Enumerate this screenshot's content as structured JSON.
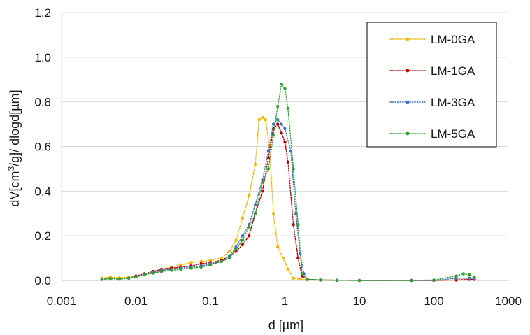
{
  "chart_data": {
    "type": "line",
    "xscale": "log",
    "xlim": [
      0.001,
      1000
    ],
    "ylim": [
      0,
      1.2
    ],
    "x_ticks": [
      0.001,
      0.01,
      0.1,
      1,
      10,
      100,
      1000
    ],
    "x_tick_labels": [
      "0.001",
      "0.01",
      "0.1",
      "1",
      "10",
      "100",
      "1000"
    ],
    "y_ticks": [
      0,
      0.2,
      0.4,
      0.6,
      0.8,
      1.0,
      1.2
    ],
    "y_tick_labels": [
      "0.0",
      "0.2",
      "0.4",
      "0.6",
      "0.8",
      "1.0",
      "1.2"
    ],
    "xlabel": "d [µm]",
    "ylabel_parts": {
      "pre": "dV[cm",
      "sup": "3",
      "post": "/g]/ dlogd[µm]"
    },
    "grid": "horizontal",
    "legend_position": "top-right",
    "series": [
      {
        "name": "LM-0GA",
        "color": "#f5b400",
        "points": [
          [
            0.0035,
            0.01
          ],
          [
            0.0045,
            0.015
          ],
          [
            0.006,
            0.012
          ],
          [
            0.008,
            0.015
          ],
          [
            0.01,
            0.02
          ],
          [
            0.013,
            0.03
          ],
          [
            0.017,
            0.04
          ],
          [
            0.022,
            0.05
          ],
          [
            0.03,
            0.06
          ],
          [
            0.04,
            0.07
          ],
          [
            0.055,
            0.08
          ],
          [
            0.075,
            0.085
          ],
          [
            0.1,
            0.09
          ],
          [
            0.14,
            0.1
          ],
          [
            0.18,
            0.13
          ],
          [
            0.22,
            0.18
          ],
          [
            0.27,
            0.28
          ],
          [
            0.33,
            0.38
          ],
          [
            0.4,
            0.52
          ],
          [
            0.45,
            0.72
          ],
          [
            0.5,
            0.73
          ],
          [
            0.55,
            0.72
          ],
          [
            0.62,
            0.6
          ],
          [
            0.7,
            0.3
          ],
          [
            0.8,
            0.15
          ],
          [
            0.95,
            0.1
          ],
          [
            1.1,
            0.05
          ],
          [
            1.3,
            0.01
          ],
          [
            1.6,
            0.005
          ],
          [
            2,
            0.003
          ],
          [
            3,
            0.002
          ],
          [
            5,
            0.001
          ],
          [
            10,
            0
          ],
          [
            50,
            0
          ],
          [
            100,
            0
          ],
          [
            200,
            0.002
          ],
          [
            300,
            0.005
          ],
          [
            350,
            0.005
          ]
        ]
      },
      {
        "name": "LM-1GA",
        "color": "#c00000",
        "points": [
          [
            0.0035,
            0.005
          ],
          [
            0.0045,
            0.008
          ],
          [
            0.006,
            0.006
          ],
          [
            0.008,
            0.01
          ],
          [
            0.01,
            0.02
          ],
          [
            0.013,
            0.03
          ],
          [
            0.017,
            0.04
          ],
          [
            0.022,
            0.05
          ],
          [
            0.03,
            0.055
          ],
          [
            0.04,
            0.06
          ],
          [
            0.055,
            0.065
          ],
          [
            0.075,
            0.075
          ],
          [
            0.1,
            0.08
          ],
          [
            0.14,
            0.09
          ],
          [
            0.18,
            0.11
          ],
          [
            0.22,
            0.13
          ],
          [
            0.27,
            0.16
          ],
          [
            0.33,
            0.2
          ],
          [
            0.4,
            0.3
          ],
          [
            0.5,
            0.4
          ],
          [
            0.6,
            0.55
          ],
          [
            0.7,
            0.68
          ],
          [
            0.8,
            0.7
          ],
          [
            0.9,
            0.66
          ],
          [
            1.0,
            0.62
          ],
          [
            1.1,
            0.53
          ],
          [
            1.3,
            0.25
          ],
          [
            1.5,
            0.1
          ],
          [
            1.7,
            0.02
          ],
          [
            2,
            0.005
          ],
          [
            3,
            0.002
          ],
          [
            5,
            0.001
          ],
          [
            10,
            0
          ],
          [
            50,
            0
          ],
          [
            100,
            0
          ],
          [
            200,
            0.002
          ],
          [
            300,
            0.005
          ],
          [
            350,
            0.005
          ]
        ]
      },
      {
        "name": "LM-3GA",
        "color": "#4472c4",
        "points": [
          [
            0.0035,
            0.005
          ],
          [
            0.0045,
            0.008
          ],
          [
            0.006,
            0.006
          ],
          [
            0.008,
            0.01
          ],
          [
            0.01,
            0.018
          ],
          [
            0.013,
            0.028
          ],
          [
            0.017,
            0.038
          ],
          [
            0.022,
            0.045
          ],
          [
            0.03,
            0.05
          ],
          [
            0.04,
            0.055
          ],
          [
            0.055,
            0.06
          ],
          [
            0.075,
            0.065
          ],
          [
            0.1,
            0.075
          ],
          [
            0.14,
            0.085
          ],
          [
            0.18,
            0.11
          ],
          [
            0.22,
            0.15
          ],
          [
            0.27,
            0.2
          ],
          [
            0.33,
            0.25
          ],
          [
            0.4,
            0.34
          ],
          [
            0.5,
            0.45
          ],
          [
            0.6,
            0.58
          ],
          [
            0.7,
            0.7
          ],
          [
            0.8,
            0.72
          ],
          [
            0.9,
            0.7
          ],
          [
            1.0,
            0.68
          ],
          [
            1.2,
            0.58
          ],
          [
            1.4,
            0.3
          ],
          [
            1.6,
            0.12
          ],
          [
            1.8,
            0.03
          ],
          [
            2,
            0.005
          ],
          [
            3,
            0.002
          ],
          [
            5,
            0.001
          ],
          [
            10,
            0
          ],
          [
            50,
            0
          ],
          [
            100,
            0
          ],
          [
            200,
            0.01
          ],
          [
            300,
            0.01
          ],
          [
            350,
            0.01
          ]
        ]
      },
      {
        "name": "LM-5GA",
        "color": "#2ca02c",
        "points": [
          [
            0.0035,
            0.005
          ],
          [
            0.0045,
            0.008
          ],
          [
            0.006,
            0.006
          ],
          [
            0.008,
            0.01
          ],
          [
            0.01,
            0.016
          ],
          [
            0.013,
            0.025
          ],
          [
            0.017,
            0.033
          ],
          [
            0.022,
            0.04
          ],
          [
            0.03,
            0.045
          ],
          [
            0.04,
            0.05
          ],
          [
            0.055,
            0.055
          ],
          [
            0.075,
            0.06
          ],
          [
            0.1,
            0.07
          ],
          [
            0.14,
            0.085
          ],
          [
            0.18,
            0.1
          ],
          [
            0.22,
            0.14
          ],
          [
            0.27,
            0.18
          ],
          [
            0.33,
            0.24
          ],
          [
            0.4,
            0.3
          ],
          [
            0.5,
            0.44
          ],
          [
            0.6,
            0.5
          ],
          [
            0.7,
            0.65
          ],
          [
            0.8,
            0.78
          ],
          [
            0.9,
            0.88
          ],
          [
            1.0,
            0.86
          ],
          [
            1.1,
            0.77
          ],
          [
            1.3,
            0.5
          ],
          [
            1.5,
            0.25
          ],
          [
            1.7,
            0.03
          ],
          [
            2,
            0.005
          ],
          [
            3,
            0.002
          ],
          [
            5,
            0.001
          ],
          [
            10,
            0
          ],
          [
            50,
            0
          ],
          [
            100,
            0.002
          ],
          [
            200,
            0.02
          ],
          [
            250,
            0.03
          ],
          [
            300,
            0.025
          ],
          [
            350,
            0.015
          ]
        ]
      }
    ]
  }
}
